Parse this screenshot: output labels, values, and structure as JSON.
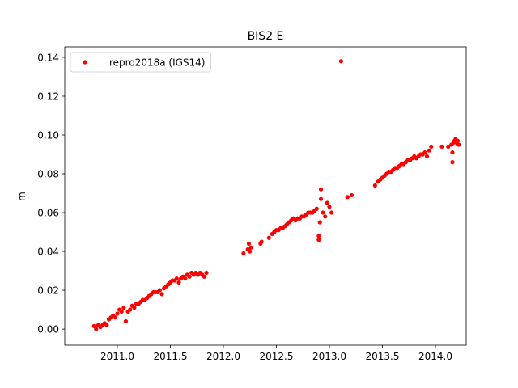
{
  "chart_data": {
    "type": "scatter",
    "title": "BIS2 E",
    "ylabel": "m",
    "legend": "upper left",
    "xlim": [
      2010.504,
      2014.29
    ],
    "ylim": [
      -0.0083,
      0.1454
    ],
    "xticks": [
      {
        "value": 2011.0,
        "label": "2011.0"
      },
      {
        "value": 2011.5,
        "label": "2011.5"
      },
      {
        "value": 2012.0,
        "label": "2012.0"
      },
      {
        "value": 2012.5,
        "label": "2012.5"
      },
      {
        "value": 2013.0,
        "label": "2013.0"
      },
      {
        "value": 2013.5,
        "label": "2013.5"
      },
      {
        "value": 2014.0,
        "label": "2014.0"
      }
    ],
    "yticks": [
      {
        "value": 0,
        "label": "0.00"
      },
      {
        "value": 0.02,
        "label": "0.02"
      },
      {
        "value": 0.04,
        "label": "0.04"
      },
      {
        "value": 0.06,
        "label": "0.06"
      },
      {
        "value": 0.08,
        "label": "0.08"
      },
      {
        "value": 0.1,
        "label": "0.10"
      },
      {
        "value": 0.12,
        "label": "0.12"
      },
      {
        "value": 0.14,
        "label": "0.14"
      }
    ],
    "x": [
      2010.78,
      2010.8,
      2010.82,
      2010.84,
      2010.86,
      2010.88,
      2010.9,
      2010.92,
      2010.94,
      2010.96,
      2010.98,
      2011.0,
      2011.02,
      2011.04,
      2011.06,
      2011.08,
      2011.1,
      2011.12,
      2011.14,
      2011.16,
      2011.18,
      2011.2,
      2011.22,
      2011.24,
      2011.26,
      2011.28,
      2011.3,
      2011.32,
      2011.34,
      2011.36,
      2011.38,
      2011.4,
      2011.42,
      2011.44,
      2011.46,
      2011.48,
      2011.5,
      2011.52,
      2011.54,
      2011.56,
      2011.58,
      2011.6,
      2011.62,
      2011.64,
      2011.66,
      2011.68,
      2011.7,
      2011.72,
      2011.74,
      2011.76,
      2011.78,
      2011.8,
      2011.82,
      2011.84,
      2012.19,
      2012.23,
      2012.24,
      2012.25,
      2012.26,
      2012.35,
      2012.36,
      2012.43,
      2012.46,
      2012.48,
      2012.5,
      2012.52,
      2012.54,
      2012.56,
      2012.58,
      2012.6,
      2012.62,
      2012.64,
      2012.66,
      2012.68,
      2012.7,
      2012.72,
      2012.74,
      2012.76,
      2012.78,
      2012.8,
      2012.82,
      2012.84,
      2012.86,
      2012.88,
      2012.9,
      2012.9,
      2012.91,
      2012.92,
      2012.92,
      2012.94,
      2012.96,
      2012.98,
      2013.0,
      2013.02,
      2013.11,
      2013.17,
      2013.21,
      2013.43,
      2013.46,
      2013.48,
      2013.5,
      2013.52,
      2013.54,
      2013.56,
      2013.58,
      2013.6,
      2013.62,
      2013.64,
      2013.66,
      2013.68,
      2013.7,
      2013.72,
      2013.74,
      2013.76,
      2013.78,
      2013.8,
      2013.82,
      2013.84,
      2013.86,
      2013.88,
      2013.9,
      2013.92,
      2013.94,
      2013.96,
      2014.06,
      2014.12,
      2014.15,
      2014.16,
      2014.16,
      2014.17,
      2014.18,
      2014.19,
      2014.2,
      2014.21,
      2014.22
    ],
    "series": [
      {
        "name": "repro2018a (IGS14)",
        "color": "#ff0000",
        "values": [
          0.0015,
          0.0,
          0.002,
          0.001,
          0.002,
          0.003,
          0.002,
          0.005,
          0.006,
          0.007,
          0.006,
          0.008,
          0.01,
          0.009,
          0.011,
          0.004,
          0.009,
          0.01,
          0.012,
          0.011,
          0.013,
          0.013,
          0.014,
          0.015,
          0.015,
          0.016,
          0.017,
          0.018,
          0.019,
          0.019,
          0.019,
          0.02,
          0.018,
          0.021,
          0.022,
          0.023,
          0.024,
          0.025,
          0.025,
          0.026,
          0.024,
          0.026,
          0.027,
          0.026,
          0.028,
          0.027,
          0.029,
          0.028,
          0.029,
          0.028,
          0.029,
          0.028,
          0.027,
          0.029,
          0.039,
          0.041,
          0.044,
          0.04,
          0.042,
          0.044,
          0.045,
          0.047,
          0.049,
          0.05,
          0.051,
          0.051,
          0.052,
          0.052,
          0.053,
          0.054,
          0.055,
          0.056,
          0.057,
          0.056,
          0.057,
          0.057,
          0.058,
          0.058,
          0.059,
          0.06,
          0.06,
          0.06,
          0.061,
          0.062,
          0.048,
          0.046,
          0.055,
          0.072,
          0.067,
          0.06,
          0.058,
          0.065,
          0.063,
          0.06,
          0.138,
          0.068,
          0.069,
          0.074,
          0.076,
          0.077,
          0.078,
          0.079,
          0.08,
          0.081,
          0.081,
          0.082,
          0.083,
          0.083,
          0.084,
          0.085,
          0.085,
          0.086,
          0.087,
          0.087,
          0.088,
          0.089,
          0.088,
          0.089,
          0.09,
          0.09,
          0.091,
          0.089,
          0.092,
          0.094,
          0.094,
          0.094,
          0.095,
          0.091,
          0.086,
          0.096,
          0.097,
          0.098,
          0.096,
          0.097,
          0.095
        ]
      }
    ]
  }
}
